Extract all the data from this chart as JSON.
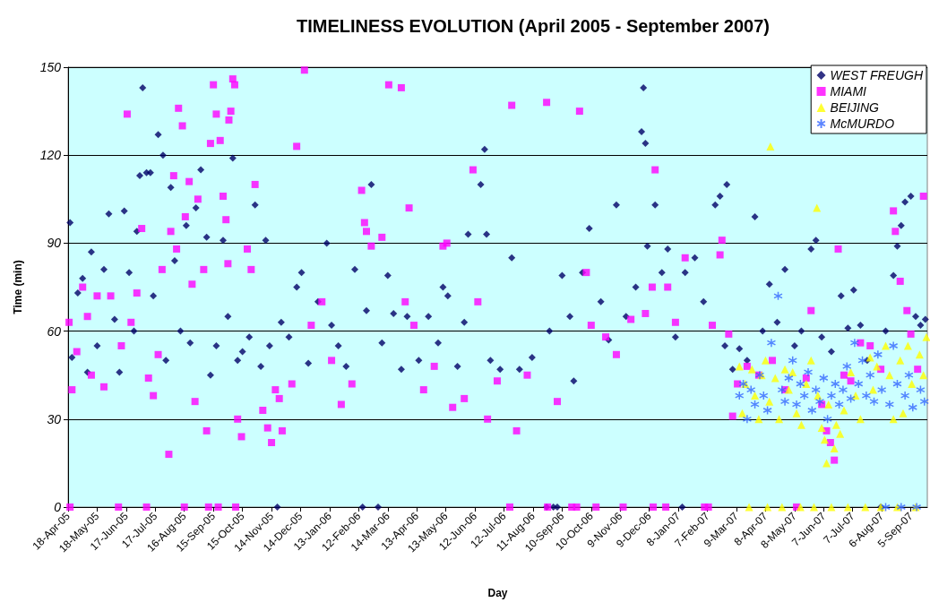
{
  "chart_data": {
    "type": "scatter",
    "title": "TIMELINESS EVOLUTION (April 2005 - September 2007)",
    "xlabel": "Day",
    "ylabel": "Time (min)",
    "xlim": [
      "2005-04-18",
      "2007-09-22"
    ],
    "xticks": [
      {
        "value": "2005-04-18",
        "label": "18-Apr-05"
      },
      {
        "value": "2005-05-18",
        "label": "18-May-05"
      },
      {
        "value": "2005-06-17",
        "label": "17-Jun-05"
      },
      {
        "value": "2005-07-17",
        "label": "17-Jul-05"
      },
      {
        "value": "2005-08-16",
        "label": "16-Aug-05"
      },
      {
        "value": "2005-09-15",
        "label": "15-Sep-05"
      },
      {
        "value": "2005-10-15",
        "label": "15-Oct-05"
      },
      {
        "value": "2005-11-14",
        "label": "14-Nov-05"
      },
      {
        "value": "2005-12-14",
        "label": "14-Dec-05"
      },
      {
        "value": "2006-01-13",
        "label": "13-Jan-06"
      },
      {
        "value": "2006-02-12",
        "label": "12-Feb-06"
      },
      {
        "value": "2006-03-14",
        "label": "14-Mar-06"
      },
      {
        "value": "2006-04-13",
        "label": "13-Apr-06"
      },
      {
        "value": "2006-05-13",
        "label": "13-May-06"
      },
      {
        "value": "2006-06-12",
        "label": "12-Jun-06"
      },
      {
        "value": "2006-07-12",
        "label": "12-Jul-06"
      },
      {
        "value": "2006-08-11",
        "label": "11-Aug-06"
      },
      {
        "value": "2006-09-10",
        "label": "10-Sep-06"
      },
      {
        "value": "2006-10-10",
        "label": "10-Oct-06"
      },
      {
        "value": "2006-11-09",
        "label": "9-Nov-06"
      },
      {
        "value": "2006-12-09",
        "label": "9-Dec-06"
      },
      {
        "value": "2007-01-08",
        "label": "8-Jan-07"
      },
      {
        "value": "2007-02-07",
        "label": "7-Feb-07"
      },
      {
        "value": "2007-03-09",
        "label": "9-Mar-07"
      },
      {
        "value": "2007-04-08",
        "label": "8-Apr-07"
      },
      {
        "value": "2007-05-08",
        "label": "8-May-07"
      },
      {
        "value": "2007-06-07",
        "label": "7-Jun-07"
      },
      {
        "value": "2007-07-07",
        "label": "7-Jul-07"
      },
      {
        "value": "2007-08-06",
        "label": "6-Aug-07"
      },
      {
        "value": "2007-09-05",
        "label": "5-Sep-07"
      }
    ],
    "ylim": [
      0,
      150
    ],
    "yticks": [
      0,
      30,
      60,
      90,
      120,
      150
    ],
    "grid": "y",
    "legend": "top right",
    "series": [
      {
        "name": "WEST FREUGH",
        "color": "#000066",
        "marker": "diamond",
        "x": [
          "2005-04-20",
          "2005-04-22",
          "2005-04-28",
          "2005-05-03",
          "2005-05-08",
          "2005-05-12",
          "2005-05-18",
          "2005-05-25",
          "2005-05-30",
          "2005-06-05",
          "2005-06-10",
          "2005-06-15",
          "2005-06-20",
          "2005-06-25",
          "2005-06-28",
          "2005-07-01",
          "2005-07-04",
          "2005-07-08",
          "2005-07-12",
          "2005-07-15",
          "2005-07-20",
          "2005-07-25",
          "2005-07-28",
          "2005-08-02",
          "2005-08-06",
          "2005-08-12",
          "2005-08-18",
          "2005-08-22",
          "2005-08-28",
          "2005-09-02",
          "2005-09-08",
          "2005-09-12",
          "2005-09-18",
          "2005-09-25",
          "2005-09-30",
          "2005-10-05",
          "2005-10-10",
          "2005-10-15",
          "2005-10-22",
          "2005-10-28",
          "2005-11-03",
          "2005-11-08",
          "2005-11-12",
          "2005-11-20",
          "2005-11-24",
          "2005-12-02",
          "2005-12-10",
          "2005-12-15",
          "2005-12-22",
          "2006-01-01",
          "2006-01-10",
          "2006-01-15",
          "2006-01-22",
          "2006-01-30",
          "2006-02-08",
          "2006-02-16",
          "2006-02-20",
          "2006-02-25",
          "2006-03-04",
          "2006-03-08",
          "2006-03-14",
          "2006-03-20",
          "2006-03-28",
          "2006-04-03",
          "2006-04-15",
          "2006-04-25",
          "2006-05-05",
          "2006-05-10",
          "2006-05-15",
          "2006-05-25",
          "2006-06-01",
          "2006-06-05",
          "2006-06-18",
          "2006-06-22",
          "2006-06-24",
          "2006-06-28",
          "2006-07-08",
          "2006-07-20",
          "2006-07-28",
          "2006-08-10",
          "2006-08-25",
          "2006-08-28",
          "2006-09-01",
          "2006-09-05",
          "2006-09-10",
          "2006-09-18",
          "2006-09-22",
          "2006-10-01",
          "2006-10-08",
          "2006-10-20",
          "2006-10-28",
          "2006-11-05",
          "2006-11-15",
          "2006-11-25",
          "2006-12-01",
          "2006-12-03",
          "2006-12-05",
          "2006-12-07",
          "2006-12-15",
          "2006-12-22",
          "2006-12-28",
          "2007-01-05",
          "2007-01-12",
          "2007-01-15",
          "2007-01-25",
          "2007-02-03",
          "2007-02-15",
          "2007-02-20",
          "2007-02-25",
          "2007-02-27",
          "2007-03-05",
          "2007-03-12",
          "2007-03-20",
          "2007-03-28",
          "2007-04-05",
          "2007-04-12",
          "2007-04-20",
          "2007-04-28",
          "2007-05-08",
          "2007-05-15",
          "2007-05-25",
          "2007-05-30",
          "2007-06-05",
          "2007-06-15",
          "2007-06-25",
          "2007-07-02",
          "2007-07-08",
          "2007-07-15",
          "2007-07-22",
          "2007-08-05",
          "2007-08-10",
          "2007-08-18",
          "2007-08-22",
          "2007-08-26",
          "2007-08-30",
          "2007-09-05",
          "2007-09-10",
          "2007-09-15",
          "2007-09-20"
        ],
        "values": [
          97,
          51,
          73,
          78,
          46,
          87,
          55,
          81,
          100,
          64,
          46,
          101,
          80,
          60,
          94,
          113,
          143,
          114,
          114,
          72,
          127,
          120,
          50,
          109,
          84,
          60,
          96,
          56,
          102,
          115,
          92,
          45,
          55,
          91,
          65,
          119,
          50,
          53,
          58,
          103,
          48,
          91,
          55,
          0,
          63,
          58,
          75,
          80,
          49,
          70,
          90,
          62,
          55,
          48,
          81,
          0,
          67,
          110,
          0,
          56,
          79,
          66,
          47,
          65,
          50,
          65,
          56,
          75,
          72,
          48,
          63,
          93,
          110,
          122,
          93,
          50,
          47,
          85,
          47,
          51,
          0,
          60,
          0,
          0,
          79,
          65,
          43,
          80,
          95,
          70,
          57,
          103,
          65,
          75,
          128,
          143,
          124,
          89,
          103,
          80,
          88,
          58,
          0,
          80,
          85,
          70,
          103,
          106,
          55,
          110,
          47,
          54,
          50,
          99,
          60,
          76,
          63,
          81,
          55,
          60,
          88,
          91,
          58,
          53,
          72,
          61,
          74,
          62,
          50,
          0,
          60,
          79,
          89,
          96,
          104,
          106,
          65,
          62,
          64
        ]
      },
      {
        "name": "MIAMI",
        "color": "#ff00ff",
        "marker": "square",
        "x": [
          "2005-04-19",
          "2005-04-20",
          "2005-04-22",
          "2005-04-27",
          "2005-05-03",
          "2005-05-08",
          "2005-05-12",
          "2005-05-18",
          "2005-05-25",
          "2005-06-01",
          "2005-06-09",
          "2005-06-12",
          "2005-06-18",
          "2005-06-22",
          "2005-06-28",
          "2005-07-03",
          "2005-07-08",
          "2005-07-10",
          "2005-07-15",
          "2005-07-20",
          "2005-07-24",
          "2005-07-31",
          "2005-08-02",
          "2005-08-05",
          "2005-08-08",
          "2005-08-10",
          "2005-08-14",
          "2005-08-16",
          "2005-08-17",
          "2005-08-21",
          "2005-08-24",
          "2005-08-27",
          "2005-08-30",
          "2005-09-05",
          "2005-09-08",
          "2005-09-10",
          "2005-09-12",
          "2005-09-15",
          "2005-09-18",
          "2005-09-20",
          "2005-09-22",
          "2005-09-25",
          "2005-09-28",
          "2005-09-30",
          "2005-10-01",
          "2005-10-03",
          "2005-10-05",
          "2005-10-07",
          "2005-10-08",
          "2005-10-10",
          "2005-10-14",
          "2005-10-20",
          "2005-10-24",
          "2005-10-28",
          "2005-11-05",
          "2005-11-10",
          "2005-11-14",
          "2005-11-18",
          "2005-11-22",
          "2005-11-25",
          "2005-12-05",
          "2005-12-10",
          "2005-12-18",
          "2005-12-25",
          "2006-01-05",
          "2006-01-15",
          "2006-01-25",
          "2006-02-05",
          "2006-02-15",
          "2006-02-18",
          "2006-02-20",
          "2006-02-25",
          "2006-03-08",
          "2006-03-15",
          "2006-03-28",
          "2006-04-01",
          "2006-04-05",
          "2006-04-10",
          "2006-04-20",
          "2006-05-01",
          "2006-05-10",
          "2006-05-14",
          "2006-05-20",
          "2006-06-01",
          "2006-06-10",
          "2006-06-15",
          "2006-06-25",
          "2006-07-05",
          "2006-07-18",
          "2006-07-20",
          "2006-07-25",
          "2006-08-05",
          "2006-08-25",
          "2006-08-26",
          "2006-09-05",
          "2006-09-20",
          "2006-09-25",
          "2006-09-28",
          "2006-10-05",
          "2006-10-10",
          "2006-10-15",
          "2006-10-25",
          "2006-11-05",
          "2006-11-12",
          "2006-11-20",
          "2006-12-05",
          "2006-12-12",
          "2006-12-13",
          "2006-12-15",
          "2006-12-26",
          "2006-12-28",
          "2007-01-05",
          "2007-01-15",
          "2007-02-04",
          "2007-02-08",
          "2007-02-12",
          "2007-02-20",
          "2007-02-22",
          "2007-03-01",
          "2007-03-05",
          "2007-03-10",
          "2007-03-20",
          "2007-04-01",
          "2007-04-15",
          "2007-04-28",
          "2007-05-10",
          "2007-05-20",
          "2007-05-25",
          "2007-06-05",
          "2007-06-10",
          "2007-06-14",
          "2007-06-18",
          "2007-06-22",
          "2007-06-28",
          "2007-07-05",
          "2007-07-15",
          "2007-07-25",
          "2007-08-05",
          "2007-08-18",
          "2007-08-20",
          "2007-08-25",
          "2007-09-01",
          "2007-09-05",
          "2007-09-12",
          "2007-09-18"
        ],
        "values": [
          63,
          0,
          40,
          53,
          75,
          65,
          45,
          72,
          41,
          72,
          0,
          55,
          134,
          63,
          73,
          95,
          0,
          44,
          38,
          52,
          81,
          18,
          94,
          113,
          88,
          136,
          130,
          0,
          99,
          111,
          76,
          36,
          105,
          81,
          26,
          0,
          124,
          144,
          134,
          0,
          125,
          106,
          98,
          83,
          132,
          135,
          146,
          144,
          0,
          30,
          24,
          88,
          81,
          110,
          33,
          27,
          22,
          40,
          37,
          26,
          42,
          123,
          149,
          62,
          70,
          50,
          35,
          42,
          108,
          97,
          94,
          89,
          92,
          144,
          143,
          70,
          102,
          62,
          40,
          48,
          89,
          90,
          34,
          37,
          115,
          70,
          30,
          43,
          0,
          137,
          26,
          45,
          138,
          0,
          36,
          0,
          0,
          135,
          80,
          62,
          0,
          58,
          52,
          0,
          64,
          66,
          75,
          0,
          115,
          0,
          75,
          63,
          85,
          0,
          0,
          62,
          86,
          91,
          59,
          31,
          42,
          48,
          45,
          50,
          40,
          0,
          44,
          67,
          35,
          26,
          22,
          16,
          88,
          45,
          43,
          56,
          55,
          47,
          101,
          94,
          77,
          67,
          59,
          47,
          106
        ]
      },
      {
        "name": "BEIJING",
        "color": "#ffff00",
        "marker": "triangle",
        "x": [
          "2007-03-12",
          "2007-03-15",
          "2007-03-18",
          "2007-03-22",
          "2007-03-25",
          "2007-03-28",
          "2007-04-01",
          "2007-04-04",
          "2007-04-08",
          "2007-04-10",
          "2007-04-12",
          "2007-04-13",
          "2007-04-18",
          "2007-04-22",
          "2007-04-25",
          "2007-04-28",
          "2007-05-02",
          "2007-05-06",
          "2007-05-10",
          "2007-05-14",
          "2007-05-15",
          "2007-05-20",
          "2007-05-25",
          "2007-05-28",
          "2007-05-31",
          "2007-06-01",
          "2007-06-05",
          "2007-06-08",
          "2007-06-10",
          "2007-06-12",
          "2007-06-15",
          "2007-06-18",
          "2007-06-20",
          "2007-06-24",
          "2007-06-28",
          "2007-07-02",
          "2007-07-05",
          "2007-07-10",
          "2007-07-15",
          "2007-07-20",
          "2007-07-25",
          "2007-07-28",
          "2007-08-01",
          "2007-08-05",
          "2007-08-10",
          "2007-08-14",
          "2007-08-18",
          "2007-08-22",
          "2007-08-25",
          "2007-08-28",
          "2007-09-02",
          "2007-09-06",
          "2007-09-10",
          "2007-09-14",
          "2007-09-18",
          "2007-09-21"
        ],
        "values": [
          48,
          32,
          42,
          0,
          47,
          38,
          30,
          45,
          50,
          0,
          36,
          123,
          44,
          30,
          0,
          47,
          40,
          46,
          32,
          0,
          28,
          42,
          50,
          0,
          102,
          38,
          27,
          23,
          15,
          35,
          0,
          20,
          28,
          25,
          33,
          0,
          46,
          38,
          30,
          0,
          51,
          40,
          48,
          0,
          55,
          45,
          30,
          0,
          50,
          32,
          55,
          42,
          0,
          52,
          45,
          58
        ]
      },
      {
        "name": "McMURDO",
        "color": "#3366ff",
        "marker": "cross",
        "x": [
          "2007-03-12",
          "2007-03-16",
          "2007-03-20",
          "2007-03-24",
          "2007-03-28",
          "2007-04-02",
          "2007-04-06",
          "2007-04-10",
          "2007-04-14",
          "2007-04-21",
          "2007-04-25",
          "2007-04-28",
          "2007-05-02",
          "2007-05-06",
          "2007-05-10",
          "2007-05-14",
          "2007-05-18",
          "2007-05-22",
          "2007-05-26",
          "2007-05-30",
          "2007-06-03",
          "2007-06-07",
          "2007-06-11",
          "2007-06-15",
          "2007-06-19",
          "2007-06-23",
          "2007-06-27",
          "2007-07-01",
          "2007-07-05",
          "2007-07-09",
          "2007-07-13",
          "2007-07-17",
          "2007-07-21",
          "2007-07-25",
          "2007-07-29",
          "2007-08-02",
          "2007-08-06",
          "2007-08-10",
          "2007-08-14",
          "2007-08-18",
          "2007-08-22",
          "2007-08-26",
          "2007-08-30",
          "2007-09-03",
          "2007-09-07",
          "2007-09-11",
          "2007-09-15",
          "2007-09-19"
        ],
        "values": [
          38,
          42,
          30,
          40,
          35,
          45,
          38,
          33,
          56,
          72,
          40,
          36,
          44,
          50,
          35,
          42,
          38,
          46,
          33,
          40,
          36,
          44,
          30,
          38,
          42,
          35,
          40,
          48,
          37,
          56,
          42,
          50,
          38,
          45,
          36,
          52,
          40,
          0,
          35,
          55,
          42,
          0,
          38,
          45,
          34,
          0,
          40,
          36
        ]
      }
    ]
  }
}
